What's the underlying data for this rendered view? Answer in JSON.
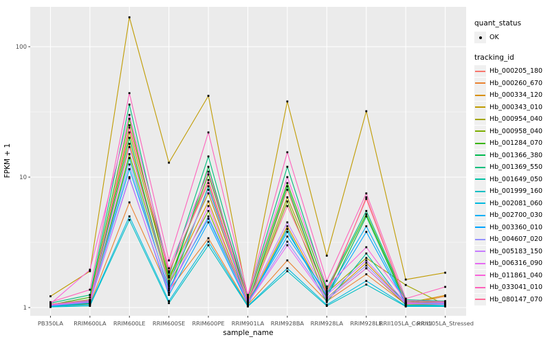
{
  "figure": {
    "xlabel": "sample_name",
    "ylabel": "FPKM + 1"
  },
  "legend": {
    "quant_status_title": "quant_status",
    "quant_ok_label": "OK",
    "tracking_title": "tracking_id"
  },
  "colors": {
    "panel_bg": "#EBEBEB",
    "grid": "#FFFFFF",
    "point": "#000000",
    "tick_text": "#4D4D4D",
    "tick_mark": "#333333",
    "legend_key_bg": "#F0F0F0"
  },
  "chart_data": {
    "type": "line",
    "title": "",
    "xlabel": "sample_name",
    "ylabel": "FPKM + 1",
    "y_scale": "log10",
    "y_ticks": [
      1,
      10,
      100
    ],
    "ylim": [
      0.9,
      180
    ],
    "grid": true,
    "legend_position": "right",
    "quant_status": "OK",
    "categories": [
      "PB350LA",
      "RRIM600LA",
      "RRIM600LE",
      "RRIM600SE",
      "RRIM600PE",
      "RRIM901LA",
      "RRIM928BA",
      "RRIM928LA",
      "RRIM928LE",
      "RRII105LA_Control",
      "RRII105LA_Stressed"
    ],
    "series": [
      {
        "name": "Hb_000205_180",
        "color": "#F8766D",
        "values": [
          1.05,
          1.12,
          25,
          1.9,
          9.0,
          1.1,
          8.0,
          1.25,
          7.0,
          1.1,
          1.08
        ]
      },
      {
        "name": "Hb_000260_670",
        "color": "#EA8331",
        "values": [
          1.02,
          1.06,
          6.4,
          1.35,
          3.4,
          1.05,
          2.3,
          1.12,
          1.8,
          1.06,
          1.22
        ]
      },
      {
        "name": "Hb_000334_120",
        "color": "#D89000",
        "values": [
          1.04,
          1.1,
          18,
          1.55,
          6.5,
          1.08,
          4.2,
          1.18,
          2.2,
          1.08,
          1.24
        ]
      },
      {
        "name": "Hb_000343_010",
        "color": "#C09B00",
        "values": [
          1.22,
          1.9,
          168,
          12.9,
          42,
          1.15,
          38,
          2.5,
          32,
          1.64,
          1.85
        ]
      },
      {
        "name": "Hb_000954_040",
        "color": "#A3A500",
        "values": [
          1.06,
          1.15,
          22,
          1.7,
          7.5,
          1.12,
          7.0,
          1.3,
          2.4,
          1.49,
          1.05
        ]
      },
      {
        "name": "Hb_000958_040",
        "color": "#7CAE00",
        "values": [
          1.03,
          1.08,
          15,
          1.5,
          5.5,
          1.06,
          6.5,
          1.15,
          2.0,
          1.05,
          1.06
        ]
      },
      {
        "name": "Hb_001284_070",
        "color": "#39B600",
        "values": [
          1.05,
          1.2,
          28,
          1.6,
          10.5,
          1.18,
          9.0,
          1.35,
          5.2,
          1.12,
          1.1
        ]
      },
      {
        "name": "Hb_001366_380",
        "color": "#00BB4E",
        "values": [
          1.04,
          1.1,
          20,
          1.45,
          12.0,
          1.08,
          8.5,
          1.2,
          5.0,
          1.08,
          1.07
        ]
      },
      {
        "name": "Hb_001369_550",
        "color": "#00BF7D",
        "values": [
          1.08,
          1.25,
          36,
          1.75,
          14.4,
          1.2,
          12.0,
          1.4,
          5.5,
          1.15,
          1.12
        ]
      },
      {
        "name": "Hb_001649_050",
        "color": "#00C1A3",
        "values": [
          1.03,
          1.07,
          14,
          1.3,
          8.5,
          1.05,
          4.0,
          1.1,
          2.6,
          1.04,
          1.05
        ]
      },
      {
        "name": "Hb_001999_160",
        "color": "#00BFC4",
        "values": [
          1.01,
          1.03,
          4.7,
          1.08,
          3.0,
          1.02,
          1.9,
          1.03,
          1.5,
          1.02,
          1.02
        ]
      },
      {
        "name": "Hb_002081_060",
        "color": "#00BAE0",
        "values": [
          1.02,
          1.05,
          5.0,
          1.12,
          3.2,
          1.03,
          2.0,
          1.05,
          1.6,
          1.03,
          1.03
        ]
      },
      {
        "name": "Hb_002700_030",
        "color": "#00B0F6",
        "values": [
          1.04,
          1.12,
          11.5,
          1.4,
          4.8,
          1.1,
          3.5,
          1.28,
          4.2,
          1.09,
          1.08
        ]
      },
      {
        "name": "Hb_003360_010",
        "color": "#00A5FF",
        "values": [
          1.03,
          1.09,
          10,
          1.25,
          4.5,
          1.07,
          3.8,
          1.22,
          3.8,
          1.07,
          1.06
        ]
      },
      {
        "name": "Hb_004607_020",
        "color": "#9590FF",
        "values": [
          1.05,
          1.11,
          12.5,
          1.35,
          5.0,
          1.09,
          3.2,
          1.18,
          2.1,
          1.08,
          1.07
        ]
      },
      {
        "name": "Hb_005183_150",
        "color": "#C77CFF",
        "values": [
          1.06,
          1.14,
          17,
          1.5,
          8.0,
          1.12,
          4.5,
          1.25,
          2.3,
          1.1,
          1.09
        ]
      },
      {
        "name": "Hb_006316_090",
        "color": "#E76BF3",
        "values": [
          1.04,
          1.1,
          9.8,
          1.3,
          6.0,
          1.08,
          3.0,
          1.15,
          2.0,
          1.07,
          1.06
        ]
      },
      {
        "name": "Hb_011861_040",
        "color": "#FA62DB",
        "values": [
          1.07,
          1.95,
          30,
          2.0,
          11.0,
          1.22,
          10.0,
          1.45,
          2.9,
          1.13,
          1.11
        ]
      },
      {
        "name": "Hb_033041_010",
        "color": "#FF62BC",
        "values": [
          1.1,
          1.37,
          44,
          2.3,
          22.0,
          1.25,
          15.5,
          1.6,
          7.5,
          1.17,
          1.44
        ]
      },
      {
        "name": "Hb_080147_070",
        "color": "#FF6A98",
        "values": [
          1.06,
          1.13,
          24,
          1.85,
          9.5,
          1.11,
          6.0,
          1.32,
          6.8,
          1.09,
          1.1
        ]
      }
    ]
  }
}
